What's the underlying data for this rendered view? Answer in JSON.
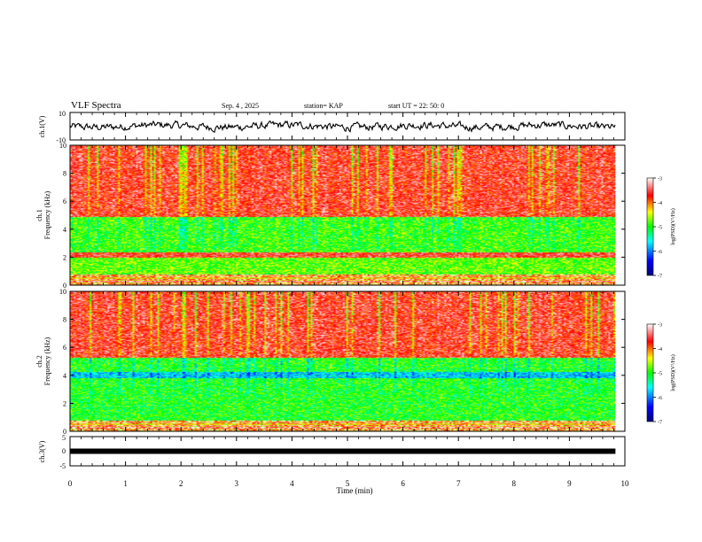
{
  "header": {
    "title": "VLF Spectra",
    "date": "Sep. 4 , 2025",
    "station": "station= KAP",
    "start": "start UT =  22: 50: 0"
  },
  "chart_data": [
    {
      "type": "line",
      "name": "ch1-waveform",
      "ylabel": "ch.1(V)",
      "ylim": [
        -10,
        10
      ],
      "yticks": [
        "10",
        "-10"
      ],
      "xlim": [
        0,
        10
      ],
      "description_series": "noisy voltage trace around 0 V, amplitude about ±3 V"
    },
    {
      "type": "heatmap",
      "name": "ch1-spectrogram",
      "ylabel": "ch.1\nFrequency (kHz)",
      "ylim": [
        0,
        10
      ],
      "yticks": [
        "0",
        "2",
        "4",
        "6",
        "8",
        "10"
      ],
      "xlim": [
        0,
        10
      ],
      "data_end_min": 9.83,
      "bands": [
        {
          "f_from": 0,
          "f_to": 0.8,
          "level": "banded orange/white"
        },
        {
          "f_from": 0.8,
          "f_to": 2.0,
          "level": -4.8
        },
        {
          "f_from": 2.0,
          "f_to": 2.4,
          "level": -3.6
        },
        {
          "f_from": 2.4,
          "f_to": 4.9,
          "level": -4.9
        },
        {
          "f_from": 4.9,
          "f_to": 10,
          "level": -3.6
        }
      ],
      "colorbar": {
        "label": "log(PSD)(V²/Hz)",
        "ticks": [
          "-3",
          "-4",
          "-5",
          "-6",
          "-7"
        ],
        "range": [
          -7,
          -3
        ]
      }
    },
    {
      "type": "heatmap",
      "name": "ch2-spectrogram",
      "ylabel": "ch.2\nFrequency (kHz)",
      "ylim": [
        0,
        10
      ],
      "yticks": [
        "0",
        "2",
        "4",
        "6",
        "8",
        "10"
      ],
      "xlim": [
        0,
        10
      ],
      "data_end_min": 9.83,
      "bands": [
        {
          "f_from": 0,
          "f_to": 0.5,
          "level": "banded orange/white"
        },
        {
          "f_from": 0.5,
          "f_to": 5.3,
          "level": -5.0
        },
        {
          "f_from": 3.8,
          "f_to": 4.3,
          "level": -5.4
        },
        {
          "f_from": 5.3,
          "f_to": 10,
          "level": -3.6
        }
      ],
      "colorbar": {
        "label": "log(PSD)(V²/Hz)",
        "ticks": [
          "-3",
          "-4",
          "-5",
          "-6",
          "-7"
        ],
        "range": [
          -7,
          -3
        ]
      }
    },
    {
      "type": "line",
      "name": "ch3-waveform",
      "ylabel": "ch.3(V)",
      "ylim": [
        -5,
        5
      ],
      "yticks": [
        "5",
        "0",
        "-5"
      ],
      "xlim": [
        0,
        10
      ],
      "constant_value": 0
    }
  ],
  "xaxis": {
    "label": "Time (min)",
    "ticks": [
      "0",
      "1",
      "2",
      "3",
      "4",
      "5",
      "6",
      "7",
      "8",
      "9",
      "10"
    ]
  },
  "colors": {
    "colormap": [
      "#000080",
      "#0000ff",
      "#00ffff",
      "#00ff00",
      "#ffff00",
      "#ff0000",
      "#ffffff"
    ]
  }
}
